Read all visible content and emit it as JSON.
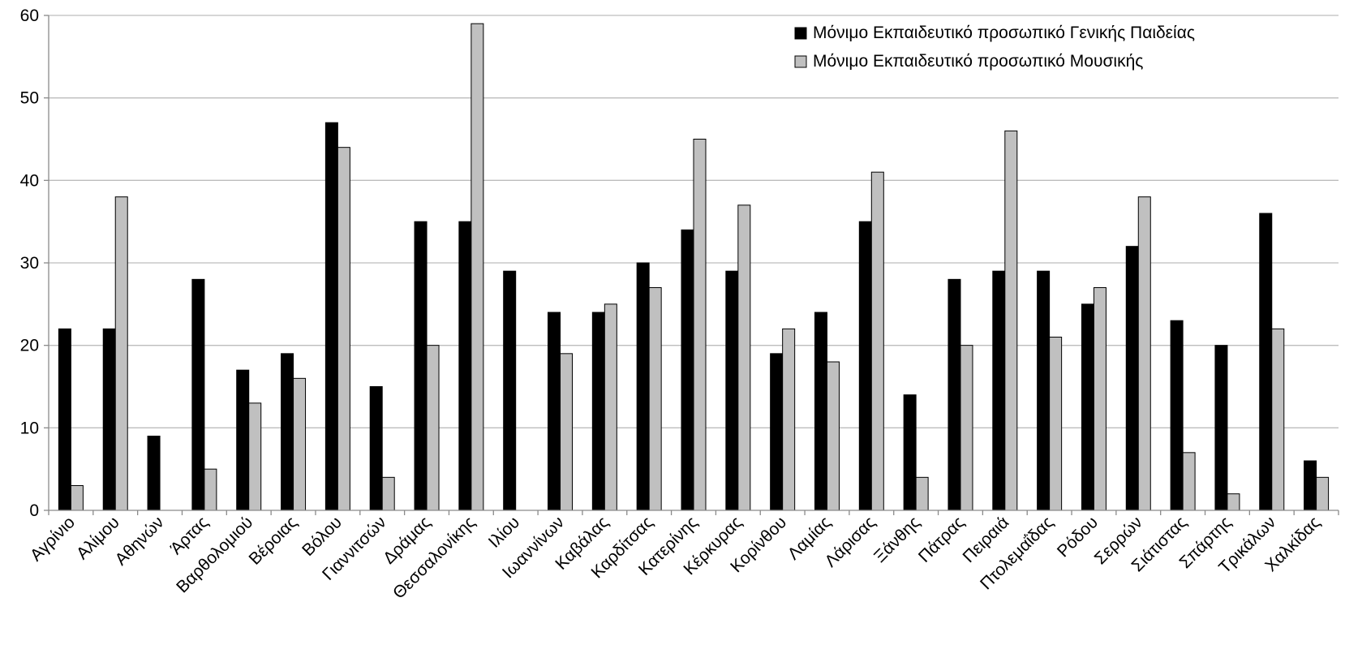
{
  "chart_data": {
    "type": "bar",
    "title": "",
    "xlabel": "",
    "ylabel": "",
    "ylim": [
      0,
      60
    ],
    "yticks": [
      0,
      10,
      20,
      30,
      40,
      50,
      60
    ],
    "grid": true,
    "legend_position": "top-right",
    "categories": [
      "Αγρίνιο",
      "Αλίμου",
      "Αθηνών",
      "Άρτας",
      "Βαρθολομιού",
      "Βέροιας",
      "Βόλου",
      "Γιαννιτσών",
      "Δράμας",
      "Θεσσαλονίκης",
      "Ιλίου",
      "Ιωαννίνων",
      "Καβάλας",
      "Καρδίτσας",
      "Κατερίνης",
      "Κέρκυρας",
      "Κορίνθου",
      "Λαμίας",
      "Λάρισας",
      "Ξάνθης",
      "Πάτρας",
      "Πειραιά",
      "Πτολεμαΐδας",
      "Ρόδου",
      "Σερρών",
      "Σιάτιστας",
      "Σπάρτης",
      "Τρικάλων",
      "Χαλκίδας"
    ],
    "series": [
      {
        "name": "Μόνιμο Εκπαιδευτικό προσωπικό Γενικής Παιδείας",
        "color": "#000000",
        "values": [
          22,
          22,
          9,
          28,
          17,
          19,
          47,
          15,
          35,
          35,
          29,
          24,
          24,
          30,
          34,
          29,
          19,
          24,
          35,
          14,
          28,
          29,
          29,
          25,
          32,
          23,
          20,
          36,
          6
        ]
      },
      {
        "name": "Μόνιμο Εκπαιδευτικό προσωπικό Μουσικής",
        "color": "#c0c0c0",
        "values": [
          3,
          38,
          0,
          5,
          13,
          16,
          44,
          4,
          20,
          59,
          0,
          19,
          25,
          27,
          45,
          37,
          22,
          18,
          41,
          4,
          20,
          46,
          21,
          27,
          38,
          7,
          2,
          22,
          4
        ]
      }
    ]
  }
}
